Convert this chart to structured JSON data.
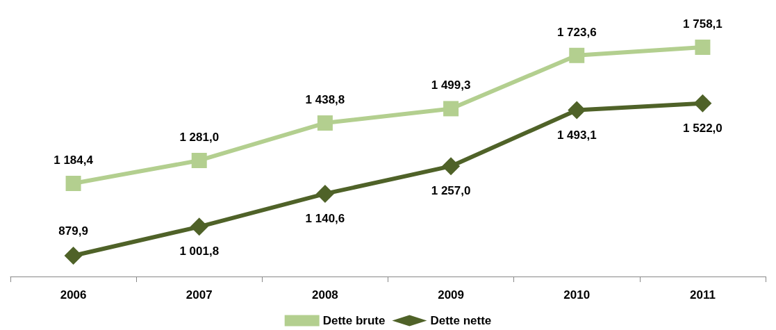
{
  "chart_data": {
    "type": "line",
    "categories": [
      "2006",
      "2007",
      "2008",
      "2009",
      "2010",
      "2011"
    ],
    "series": [
      {
        "name": "Dette brute",
        "color": "#b3cf8f",
        "marker": "square",
        "values": [
          1184.4,
          1281.0,
          1438.8,
          1499.3,
          1723.6,
          1758.1
        ],
        "value_labels": [
          "1 184,4",
          "1 281,0",
          "1 438,8",
          "1 499,3",
          "1 723,6",
          "1 758,1"
        ]
      },
      {
        "name": "Dette nette",
        "color": "#4f6228",
        "marker": "diamond",
        "values": [
          879.9,
          1001.8,
          1140.6,
          1257.0,
          1493.1,
          1522.0
        ],
        "value_labels": [
          "879,9",
          "1 001,8",
          "1 140,6",
          "1 257,0",
          "1 493,1",
          "1 522,0"
        ]
      }
    ],
    "grid": false,
    "legend": "bottom",
    "line_style": "solid"
  }
}
